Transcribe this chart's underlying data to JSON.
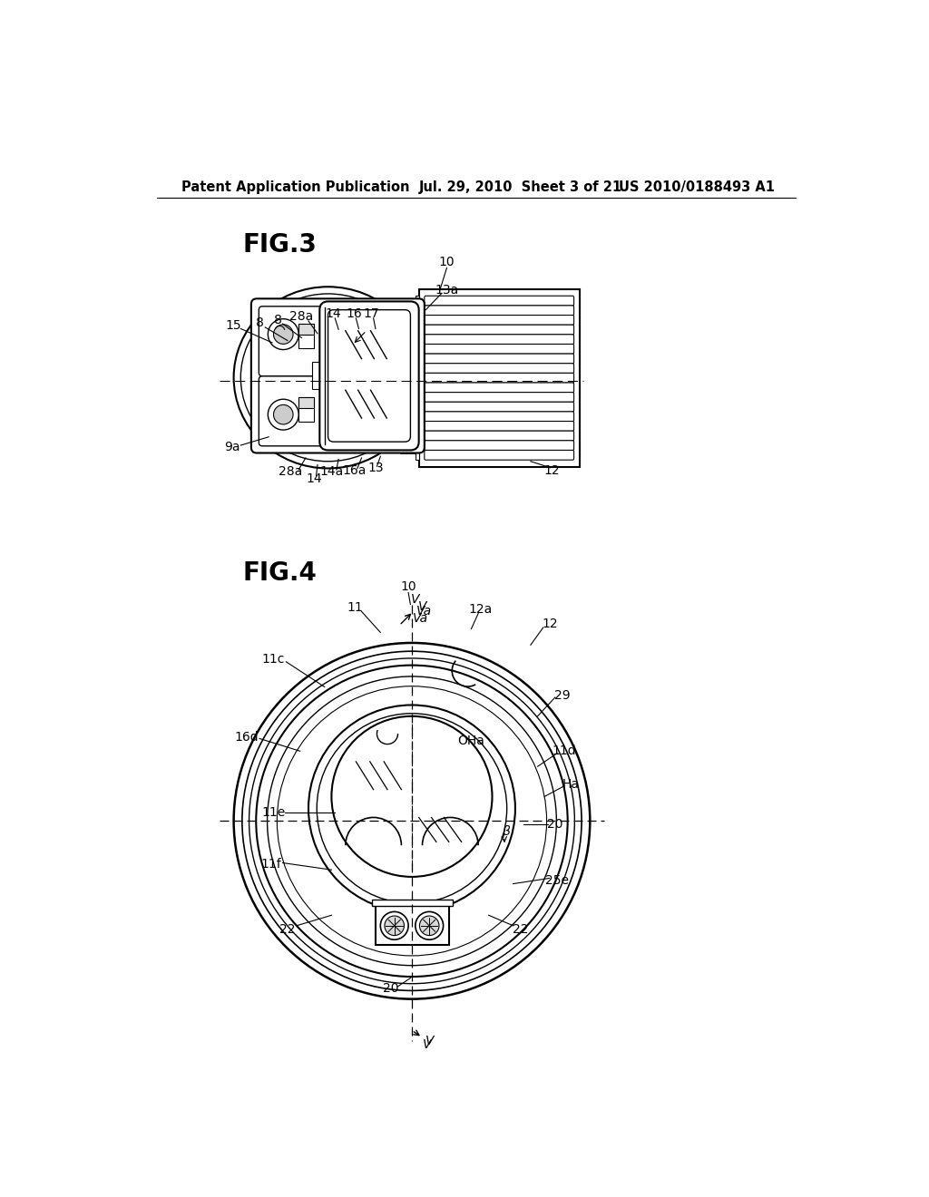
{
  "background_color": "#ffffff",
  "header_left": "Patent Application Publication",
  "header_center": "Jul. 29, 2010  Sheet 3 of 21",
  "header_right": "US 2010/0188493 A1",
  "line_color": "#000000",
  "text_color": "#000000",
  "fig3_label": "FIG.3",
  "fig4_label": "FIG.4"
}
